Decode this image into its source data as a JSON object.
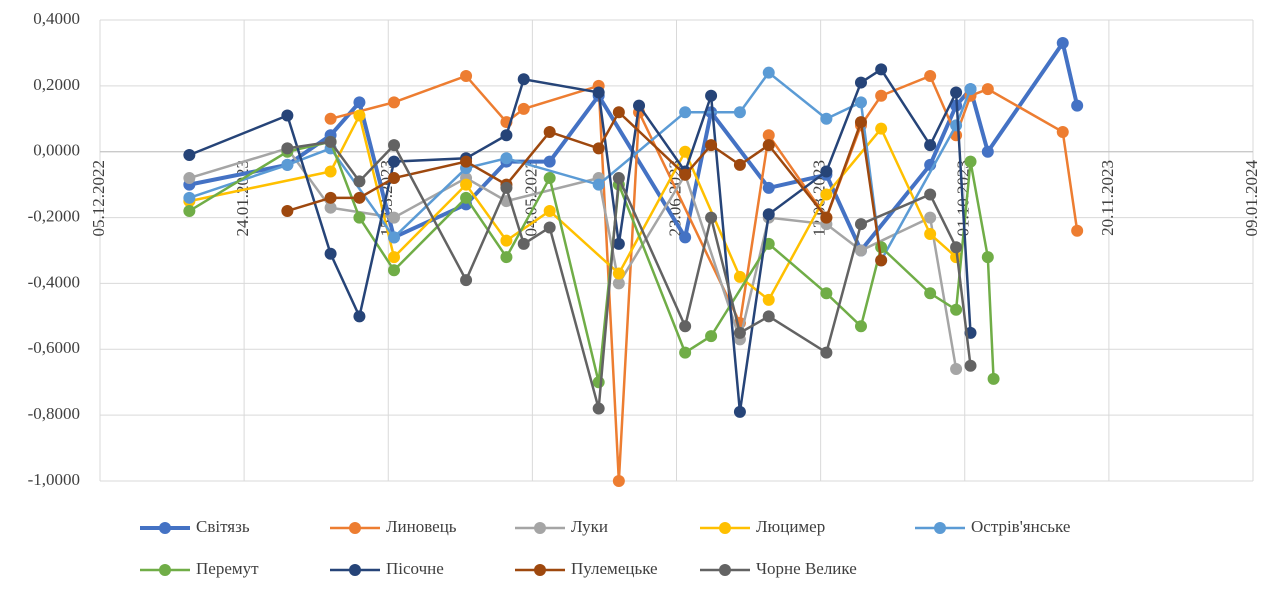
{
  "chart_data": {
    "type": "line",
    "xlim": [
      "05.12.2022",
      "09.01.2024"
    ],
    "xticks": [
      "05.12.2022",
      "24.01.2023",
      "15.03.2023",
      "04.05.2023",
      "23.06.2023",
      "12.08.2023",
      "01.10.2023",
      "20.11.2023",
      "09.01.2024"
    ],
    "ylim": [
      -1.0,
      0.4
    ],
    "yticks": [
      {
        "value": 0.4,
        "label": "0,4000"
      },
      {
        "value": 0.2,
        "label": "0,2000"
      },
      {
        "value": 0,
        "label": "0,0000"
      },
      {
        "value": -0.2,
        "label": "-0,2000"
      },
      {
        "value": -0.4,
        "label": "-0,4000"
      },
      {
        "value": -0.6,
        "label": "-0,6000"
      },
      {
        "value": -0.8,
        "label": "-0,8000"
      },
      {
        "value": -1.0,
        "label": "-1,0000"
      }
    ],
    "grid": true,
    "legend": "bottom",
    "series": [
      {
        "name": "Світязь",
        "color": "#4472c4",
        "x": [
          "05.01.2023",
          "08.02.2023",
          "23.02.2023",
          "05.03.2023",
          "17.03.2023",
          "11.04.2023",
          "25.04.2023",
          "10.05.2023",
          "27.05.2023",
          "26.06.2023",
          "05.07.2023",
          "25.07.2023",
          "14.08.2023",
          "26.08.2023",
          "19.09.2023",
          "28.09.2023",
          "03.10.2023",
          "09.10.2023",
          "04.11.2023",
          "09.11.2023"
        ],
        "values": [
          -0.1,
          -0.04,
          0.05,
          0.15,
          -0.26,
          -0.16,
          -0.03,
          -0.03,
          0.17,
          -0.26,
          0.12,
          -0.11,
          -0.07,
          -0.3,
          -0.04,
          0.14,
          0.19,
          0.0,
          0.33,
          0.14
        ]
      },
      {
        "name": "Линовець",
        "color": "#ed7d31",
        "x": [
          "23.02.2023",
          "17.03.2023",
          "11.04.2023",
          "25.04.2023",
          "01.05.2023",
          "27.05.2023",
          "03.06.2023",
          "10.06.2023",
          "15.07.2023",
          "25.07.2023",
          "14.08.2023",
          "26.08.2023",
          "02.09.2023",
          "19.09.2023",
          "28.09.2023",
          "03.10.2023",
          "09.10.2023",
          "04.11.2023",
          "09.11.2023"
        ],
        "values": [
          0.1,
          0.15,
          0.23,
          0.09,
          0.13,
          0.2,
          -1.0,
          0.12,
          -0.52,
          0.05,
          -0.2,
          0.08,
          0.17,
          0.23,
          0.05,
          0.17,
          0.19,
          0.06,
          -0.24
        ]
      },
      {
        "name": "Луки",
        "color": "#a5a5a5",
        "x": [
          "05.01.2023",
          "08.02.2023",
          "23.02.2023",
          "17.03.2023",
          "11.04.2023",
          "25.04.2023",
          "27.05.2023",
          "03.06.2023",
          "26.06.2023",
          "15.07.2023",
          "25.07.2023",
          "14.08.2023",
          "26.08.2023",
          "19.09.2023",
          "28.09.2023"
        ],
        "values": [
          -0.08,
          0.01,
          -0.17,
          -0.2,
          -0.08,
          -0.15,
          -0.08,
          -0.4,
          -0.07,
          -0.57,
          -0.2,
          -0.22,
          -0.3,
          -0.2,
          -0.66
        ]
      },
      {
        "name": "Люцимер",
        "color": "#ffc000",
        "x": [
          "05.01.2023",
          "23.02.2023",
          "05.03.2023",
          "17.03.2023",
          "11.04.2023",
          "25.04.2023",
          "10.05.2023",
          "03.06.2023",
          "26.06.2023",
          "15.07.2023",
          "25.07.2023",
          "14.08.2023",
          "02.09.2023",
          "19.09.2023",
          "28.09.2023"
        ],
        "values": [
          -0.15,
          -0.06,
          0.11,
          -0.32,
          -0.1,
          -0.27,
          -0.18,
          -0.37,
          0.0,
          -0.38,
          -0.45,
          -0.13,
          0.07,
          -0.25,
          -0.32
        ]
      },
      {
        "name": "Острів'янське",
        "color": "#5b9bd5",
        "x": [
          "05.01.2023",
          "08.02.2023",
          "23.02.2023",
          "17.03.2023",
          "11.04.2023",
          "25.04.2023",
          "27.05.2023",
          "26.06.2023",
          "15.07.2023",
          "25.07.2023",
          "14.08.2023",
          "26.08.2023",
          "02.09.2023",
          "28.09.2023",
          "03.10.2023"
        ],
        "values": [
          -0.14,
          -0.04,
          0.01,
          -0.26,
          -0.05,
          -0.02,
          -0.1,
          0.12,
          0.12,
          0.24,
          0.1,
          0.15,
          -0.33,
          0.08,
          0.19
        ]
      },
      {
        "name": "Перемут",
        "color": "#70ad47",
        "x": [
          "05.01.2023",
          "08.02.2023",
          "23.02.2023",
          "05.03.2023",
          "17.03.2023",
          "11.04.2023",
          "25.04.2023",
          "10.05.2023",
          "27.05.2023",
          "03.06.2023",
          "26.06.2023",
          "05.07.2023",
          "25.07.2023",
          "14.08.2023",
          "26.08.2023",
          "02.09.2023",
          "19.09.2023",
          "28.09.2023",
          "03.10.2023",
          "09.10.2023",
          "11.10.2023"
        ],
        "values": [
          -0.18,
          0.0,
          0.03,
          -0.2,
          -0.36,
          -0.14,
          -0.32,
          -0.08,
          -0.7,
          -0.1,
          -0.61,
          -0.56,
          -0.28,
          -0.43,
          -0.53,
          -0.29,
          -0.43,
          -0.48,
          -0.03,
          -0.32,
          -0.69
        ]
      },
      {
        "name": "Пісочне",
        "color": "#264478",
        "x": [
          "05.01.2023",
          "08.02.2023",
          "23.02.2023",
          "05.03.2023",
          "17.03.2023",
          "11.04.2023",
          "25.04.2023",
          "01.05.2023",
          "27.05.2023",
          "03.06.2023",
          "10.06.2023",
          "26.06.2023",
          "05.07.2023",
          "15.07.2023",
          "25.07.2023",
          "14.08.2023",
          "26.08.2023",
          "02.09.2023",
          "19.09.2023",
          "28.09.2023",
          "03.10.2023"
        ],
        "values": [
          -0.01,
          0.11,
          -0.31,
          -0.5,
          -0.03,
          -0.02,
          0.05,
          0.22,
          0.18,
          -0.28,
          0.14,
          -0.06,
          0.17,
          -0.79,
          -0.19,
          -0.06,
          0.21,
          0.25,
          0.02,
          0.18,
          -0.55
        ]
      },
      {
        "name": "Пулемецьке",
        "color": "#9e480e",
        "x": [
          "08.02.2023",
          "23.02.2023",
          "05.03.2023",
          "17.03.2023",
          "11.04.2023",
          "25.04.2023",
          "10.05.2023",
          "27.05.2023",
          "03.06.2023",
          "26.06.2023",
          "05.07.2023",
          "15.07.2023",
          "25.07.2023",
          "14.08.2023",
          "26.08.2023",
          "02.09.2023"
        ],
        "values": [
          -0.18,
          -0.14,
          -0.14,
          -0.08,
          -0.03,
          -0.1,
          0.06,
          0.01,
          0.12,
          -0.07,
          0.02,
          -0.04,
          0.02,
          -0.2,
          0.09,
          -0.33
        ]
      },
      {
        "name": "Чорне Велике",
        "color": "#636363",
        "x": [
          "08.02.2023",
          "23.02.2023",
          "05.03.2023",
          "17.03.2023",
          "11.04.2023",
          "25.04.2023",
          "01.05.2023",
          "10.05.2023",
          "27.05.2023",
          "03.06.2023",
          "26.06.2023",
          "05.07.2023",
          "15.07.2023",
          "25.07.2023",
          "14.08.2023",
          "26.08.2023",
          "19.09.2023",
          "28.09.2023",
          "03.10.2023"
        ],
        "values": [
          0.01,
          0.03,
          -0.09,
          0.02,
          -0.39,
          -0.11,
          -0.28,
          -0.23,
          -0.78,
          -0.08,
          -0.53,
          -0.2,
          -0.55,
          -0.5,
          -0.61,
          -0.22,
          -0.13,
          -0.29,
          -0.65
        ]
      }
    ]
  }
}
